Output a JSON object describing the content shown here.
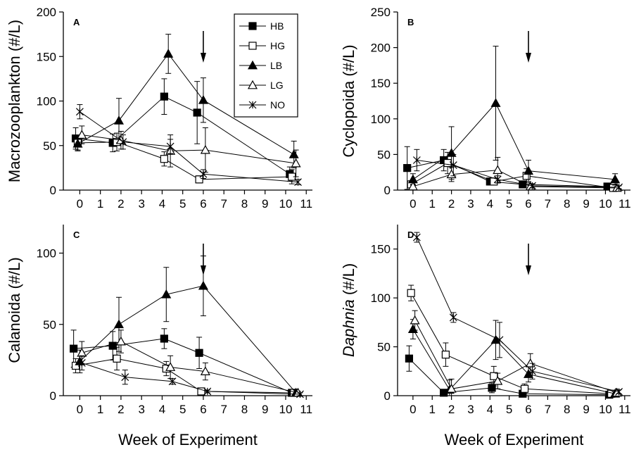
{
  "figure": {
    "xlabel": "Week of Experiment",
    "legend": [
      {
        "name": "HB",
        "marker": "square-filled"
      },
      {
        "name": "HG",
        "marker": "square-open"
      },
      {
        "name": "LB",
        "marker": "triangle-filled"
      },
      {
        "name": "LG",
        "marker": "triangle-open"
      },
      {
        "name": "NO",
        "marker": "x"
      }
    ]
  },
  "chart_data": [
    {
      "panel": "A",
      "type": "line",
      "ylabel": "Macrozooplankton (#/L)",
      "ylabel_italic": false,
      "ylim": [
        0,
        200
      ],
      "yticks": [
        0,
        50,
        100,
        150,
        200
      ],
      "xlim": [
        -0.8,
        11.3
      ],
      "xticks": [
        0,
        1,
        2,
        3,
        4,
        5,
        6,
        7,
        8,
        9,
        10,
        11
      ],
      "legend_position": "top-right",
      "arrow_week": 6,
      "series": [
        {
          "name": "HB",
          "marker": "square-filled",
          "points": [
            [
              -0.2,
              58,
              12
            ],
            [
              1.6,
              53,
              10
            ],
            [
              4.1,
              105,
              20
            ],
            [
              5.7,
              87,
              35
            ],
            [
              10.2,
              18,
              8
            ]
          ]
        },
        {
          "name": "HG",
          "marker": "square-open",
          "points": [
            [
              -0.1,
              53,
              8
            ],
            [
              1.8,
              54,
              10
            ],
            [
              4.1,
              35,
              8
            ],
            [
              5.8,
              12,
              4
            ],
            [
              10.3,
              15,
              8
            ]
          ]
        },
        {
          "name": "LB",
          "marker": "triangle-filled",
          "points": [
            [
              -0.1,
              52,
              8
            ],
            [
              1.9,
              78,
              25
            ],
            [
              4.3,
              153,
              22
            ],
            [
              6.0,
              101,
              25
            ],
            [
              10.4,
              40,
              15
            ]
          ]
        },
        {
          "name": "LG",
          "marker": "triangle-open",
          "points": [
            [
              0.1,
              62,
              10
            ],
            [
              2.0,
              56,
              10
            ],
            [
              4.4,
              44,
              18
            ],
            [
              6.1,
              45,
              25
            ],
            [
              10.5,
              30,
              15
            ]
          ]
        },
        {
          "name": "NO",
          "marker": "x",
          "points": [
            [
              0.0,
              88,
              8
            ],
            [
              2.1,
              54,
              8
            ],
            [
              4.4,
              49,
              8
            ],
            [
              6.0,
              18,
              5
            ],
            [
              10.6,
              9,
              3
            ]
          ]
        }
      ]
    },
    {
      "panel": "B",
      "type": "line",
      "ylabel": "Cyclopoida (#/L)",
      "ylabel_italic": false,
      "ylim": [
        0,
        250
      ],
      "yticks": [
        0,
        50,
        100,
        150,
        200,
        250
      ],
      "xlim": [
        -0.8,
        11.3
      ],
      "xticks": [
        0,
        1,
        2,
        3,
        4,
        5,
        6,
        7,
        8,
        9,
        10,
        11
      ],
      "arrow_week": 6,
      "series": [
        {
          "name": "HB",
          "marker": "square-filled",
          "points": [
            [
              -0.3,
              31,
              30
            ],
            [
              1.6,
              42,
              15
            ],
            [
              4.0,
              12,
              5
            ],
            [
              5.7,
              8,
              4
            ],
            [
              10.1,
              5,
              3
            ]
          ]
        },
        {
          "name": "HG",
          "marker": "square-open",
          "points": [
            [
              -0.1,
              8,
              5
            ],
            [
              1.8,
              38,
              15
            ],
            [
              4.2,
              12,
              5
            ],
            [
              5.9,
              20,
              10
            ],
            [
              10.4,
              3,
              2
            ]
          ]
        },
        {
          "name": "LB",
          "marker": "triangle-filled",
          "points": [
            [
              0.0,
              15,
              8
            ],
            [
              2.0,
              52,
              37
            ],
            [
              4.3,
              122,
              80
            ],
            [
              6.0,
              27,
              15
            ],
            [
              10.5,
              15,
              8
            ]
          ]
        },
        {
          "name": "LG",
          "marker": "triangle-open",
          "points": [
            [
              0.0,
              5,
              3
            ],
            [
              2.0,
              22,
              10
            ],
            [
              4.4,
              28,
              18
            ],
            [
              6.1,
              5,
              3
            ],
            [
              10.6,
              3,
              2
            ]
          ]
        },
        {
          "name": "NO",
          "marker": "x",
          "points": [
            [
              0.2,
              42,
              15
            ],
            [
              2.1,
              35,
              15
            ],
            [
              4.4,
              15,
              5
            ],
            [
              6.2,
              6,
              3
            ],
            [
              10.7,
              4,
              2
            ]
          ]
        }
      ]
    },
    {
      "panel": "C",
      "type": "line",
      "ylabel": "Calanoida (#/L)",
      "ylabel_italic": false,
      "ylim": [
        0,
        120
      ],
      "yticks": [
        0,
        50,
        100
      ],
      "xlim": [
        -0.8,
        11.3
      ],
      "xticks": [
        0,
        1,
        2,
        3,
        4,
        5,
        6,
        7,
        8,
        9,
        10,
        11
      ],
      "arrow_week": 6,
      "series": [
        {
          "name": "HB",
          "marker": "square-filled",
          "points": [
            [
              -0.3,
              33,
              13
            ],
            [
              1.6,
              35,
              10
            ],
            [
              4.1,
              40,
              7
            ],
            [
              5.8,
              30,
              11
            ],
            [
              10.3,
              2,
              2
            ]
          ]
        },
        {
          "name": "HG",
          "marker": "square-open",
          "points": [
            [
              -0.2,
              21,
              5
            ],
            [
              1.8,
              26,
              8
            ],
            [
              4.2,
              19,
              5
            ],
            [
              5.9,
              3,
              2
            ],
            [
              10.4,
              2,
              1
            ]
          ]
        },
        {
          "name": "LB",
          "marker": "triangle-filled",
          "points": [
            [
              0.0,
              24,
              8
            ],
            [
              1.9,
              50,
              19
            ],
            [
              4.2,
              71,
              19
            ],
            [
              6.0,
              77,
              21
            ],
            [
              10.5,
              2,
              2
            ]
          ]
        },
        {
          "name": "LG",
          "marker": "triangle-open",
          "points": [
            [
              0.1,
              30,
              8
            ],
            [
              2.0,
              38,
              8
            ],
            [
              4.4,
              20,
              8
            ],
            [
              6.1,
              17,
              6
            ],
            [
              10.6,
              2,
              1
            ]
          ]
        },
        {
          "name": "NO",
          "marker": "x",
          "points": [
            [
              0.1,
              23,
              5
            ],
            [
              2.2,
              13,
              5
            ],
            [
              4.5,
              10,
              2
            ],
            [
              6.2,
              3,
              1
            ],
            [
              10.7,
              1,
              1
            ]
          ]
        }
      ]
    },
    {
      "panel": "D",
      "type": "line",
      "ylabel": "Daphnia (#/L)",
      "ylabel_italic": true,
      "ylim": [
        0,
        175
      ],
      "yticks": [
        0,
        50,
        100,
        150
      ],
      "xlim": [
        -0.8,
        11.3
      ],
      "xticks": [
        0,
        1,
        2,
        3,
        4,
        5,
        6,
        7,
        8,
        9,
        10,
        11
      ],
      "arrow_week": 6,
      "series": [
        {
          "name": "HB",
          "marker": "square-filled",
          "points": [
            [
              -0.2,
              38,
              13
            ],
            [
              1.6,
              3,
              3
            ],
            [
              4.1,
              8,
              5
            ],
            [
              5.7,
              2,
              2
            ],
            [
              10.2,
              1,
              1
            ]
          ]
        },
        {
          "name": "HG",
          "marker": "square-open",
          "points": [
            [
              -0.1,
              105,
              8
            ],
            [
              1.7,
              42,
              12
            ],
            [
              4.2,
              20,
              10
            ],
            [
              5.8,
              7,
              5
            ],
            [
              10.3,
              2,
              1
            ]
          ]
        },
        {
          "name": "LB",
          "marker": "triangle-filled",
          "points": [
            [
              0.0,
              68,
              10
            ],
            [
              1.9,
              6,
              10
            ],
            [
              4.3,
              57,
              20
            ],
            [
              6.0,
              22,
              8
            ],
            [
              10.5,
              2,
              2
            ]
          ]
        },
        {
          "name": "LG",
          "marker": "triangle-open",
          "points": [
            [
              0.1,
              77,
              10
            ],
            [
              2.0,
              7,
              10
            ],
            [
              4.4,
              15,
              8
            ],
            [
              6.1,
              33,
              10
            ],
            [
              10.6,
              3,
              2
            ]
          ]
        },
        {
          "name": "NO",
          "marker": "x",
          "points": [
            [
              0.2,
              162,
              5
            ],
            [
              2.1,
              80,
              5
            ],
            [
              4.5,
              57,
              18
            ],
            [
              6.2,
              25,
              8
            ],
            [
              10.7,
              4,
              2
            ]
          ]
        }
      ]
    }
  ]
}
